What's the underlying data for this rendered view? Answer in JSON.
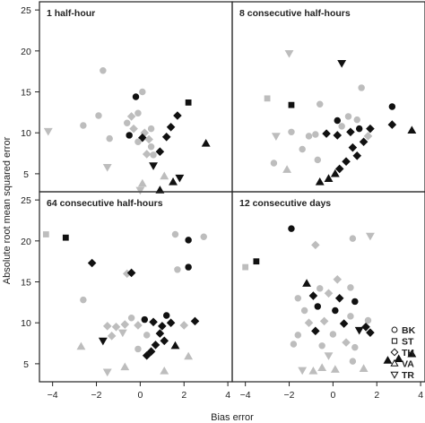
{
  "figure": {
    "xlabel": "Bias error",
    "ylabel": "Absolute root mean squared error"
  },
  "legend": {
    "items": [
      {
        "code": "BK",
        "shape": "circle"
      },
      {
        "code": "ST",
        "shape": "square"
      },
      {
        "code": "TH",
        "shape": "diamond"
      },
      {
        "code": "VA",
        "shape": "triangle-up"
      },
      {
        "code": "TR",
        "shape": "triangle-down"
      }
    ]
  },
  "colors": {
    "black": "#111111",
    "gray": "#bdbdbd",
    "frame": "#222222"
  },
  "chart_data": [
    {
      "type": "scatter",
      "title": "1 half-hour",
      "xlim": [
        -4.6,
        4.2
      ],
      "ylim": [
        2.8,
        26
      ],
      "xticks": [
        -4,
        -2,
        0,
        2,
        4
      ],
      "yticks": [
        5,
        10,
        15,
        20,
        25
      ],
      "points": [
        {
          "x": -1.7,
          "y": 17.6,
          "shape": "circle",
          "fill": "gray"
        },
        {
          "x": -2.6,
          "y": 10.9,
          "shape": "circle",
          "fill": "gray"
        },
        {
          "x": -1.9,
          "y": 12.1,
          "shape": "circle",
          "fill": "gray"
        },
        {
          "x": -1.4,
          "y": 9.3,
          "shape": "circle",
          "fill": "gray"
        },
        {
          "x": -4.2,
          "y": 10.2,
          "shape": "triangle-down",
          "fill": "gray"
        },
        {
          "x": -1.5,
          "y": 5.8,
          "shape": "triangle-down",
          "fill": "gray"
        },
        {
          "x": -0.2,
          "y": 14.4,
          "shape": "circle",
          "fill": "black"
        },
        {
          "x": 0.1,
          "y": 15.0,
          "shape": "circle",
          "fill": "gray"
        },
        {
          "x": -0.4,
          "y": 12.0,
          "shape": "diamond",
          "fill": "gray"
        },
        {
          "x": -0.6,
          "y": 11.2,
          "shape": "circle",
          "fill": "gray"
        },
        {
          "x": -0.1,
          "y": 12.4,
          "shape": "circle",
          "fill": "gray"
        },
        {
          "x": -0.3,
          "y": 10.5,
          "shape": "diamond",
          "fill": "gray"
        },
        {
          "x": 0.2,
          "y": 10.0,
          "shape": "diamond",
          "fill": "gray"
        },
        {
          "x": 0.5,
          "y": 10.5,
          "shape": "circle",
          "fill": "gray"
        },
        {
          "x": -0.5,
          "y": 9.7,
          "shape": "circle",
          "fill": "black"
        },
        {
          "x": 0.1,
          "y": 9.4,
          "shape": "diamond",
          "fill": "black"
        },
        {
          "x": 0.4,
          "y": 9.2,
          "shape": "diamond",
          "fill": "gray"
        },
        {
          "x": -0.1,
          "y": 8.9,
          "shape": "circle",
          "fill": "gray"
        },
        {
          "x": 0.5,
          "y": 8.3,
          "shape": "circle",
          "fill": "gray"
        },
        {
          "x": 0.3,
          "y": 7.4,
          "shape": "diamond",
          "fill": "gray"
        },
        {
          "x": 0.6,
          "y": 7.3,
          "shape": "circle",
          "fill": "gray"
        },
        {
          "x": 0.9,
          "y": 7.7,
          "shape": "diamond",
          "fill": "black"
        },
        {
          "x": 1.2,
          "y": 9.5,
          "shape": "diamond",
          "fill": "black"
        },
        {
          "x": 1.7,
          "y": 12.1,
          "shape": "diamond",
          "fill": "black"
        },
        {
          "x": 1.4,
          "y": 10.7,
          "shape": "diamond",
          "fill": "black"
        },
        {
          "x": 2.2,
          "y": 13.7,
          "shape": "square",
          "fill": "black"
        },
        {
          "x": 3.0,
          "y": 8.7,
          "shape": "triangle-up",
          "fill": "black"
        },
        {
          "x": 0.6,
          "y": 6.0,
          "shape": "triangle-down",
          "fill": "black"
        },
        {
          "x": 1.1,
          "y": 4.7,
          "shape": "triangle-up",
          "fill": "gray"
        },
        {
          "x": 1.8,
          "y": 4.5,
          "shape": "triangle-down",
          "fill": "black"
        },
        {
          "x": 1.5,
          "y": 4.0,
          "shape": "triangle-up",
          "fill": "black"
        },
        {
          "x": 0.1,
          "y": 3.8,
          "shape": "triangle-up",
          "fill": "gray"
        },
        {
          "x": 0.9,
          "y": 3.0,
          "shape": "triangle-up",
          "fill": "black"
        },
        {
          "x": 0.0,
          "y": 3.0,
          "shape": "triangle-down",
          "fill": "gray"
        }
      ]
    },
    {
      "type": "scatter",
      "title": "8 consecutive half-hours",
      "xlim": [
        -4.6,
        4.2
      ],
      "ylim": [
        2.8,
        26
      ],
      "xticks": [
        -4,
        -2,
        0,
        2,
        4
      ],
      "yticks": [
        5,
        10,
        15,
        20,
        25
      ],
      "points": [
        {
          "x": -2.0,
          "y": 19.7,
          "shape": "triangle-down",
          "fill": "gray"
        },
        {
          "x": 0.4,
          "y": 18.5,
          "shape": "triangle-down",
          "fill": "black"
        },
        {
          "x": -3.0,
          "y": 14.2,
          "shape": "square",
          "fill": "gray"
        },
        {
          "x": -1.9,
          "y": 13.4,
          "shape": "square",
          "fill": "black"
        },
        {
          "x": -0.6,
          "y": 13.5,
          "shape": "circle",
          "fill": "gray"
        },
        {
          "x": 1.3,
          "y": 15.5,
          "shape": "circle",
          "fill": "gray"
        },
        {
          "x": 2.7,
          "y": 13.2,
          "shape": "circle",
          "fill": "black"
        },
        {
          "x": 0.2,
          "y": 11.5,
          "shape": "circle",
          "fill": "black"
        },
        {
          "x": 0.7,
          "y": 12.0,
          "shape": "circle",
          "fill": "gray"
        },
        {
          "x": 1.1,
          "y": 11.6,
          "shape": "circle",
          "fill": "gray"
        },
        {
          "x": 0.4,
          "y": 10.8,
          "shape": "circle",
          "fill": "gray"
        },
        {
          "x": 2.7,
          "y": 11.0,
          "shape": "diamond",
          "fill": "black"
        },
        {
          "x": 3.6,
          "y": 10.3,
          "shape": "triangle-up",
          "fill": "black"
        },
        {
          "x": 1.7,
          "y": 10.5,
          "shape": "diamond",
          "fill": "black"
        },
        {
          "x": -1.9,
          "y": 10.1,
          "shape": "circle",
          "fill": "gray"
        },
        {
          "x": -2.6,
          "y": 9.6,
          "shape": "triangle-down",
          "fill": "gray"
        },
        {
          "x": -1.1,
          "y": 9.6,
          "shape": "circle",
          "fill": "gray"
        },
        {
          "x": -0.8,
          "y": 9.8,
          "shape": "circle",
          "fill": "gray"
        },
        {
          "x": -0.3,
          "y": 9.9,
          "shape": "diamond",
          "fill": "black"
        },
        {
          "x": 0.2,
          "y": 9.7,
          "shape": "diamond",
          "fill": "black"
        },
        {
          "x": 0.8,
          "y": 10.1,
          "shape": "diamond",
          "fill": "black"
        },
        {
          "x": 1.2,
          "y": 10.5,
          "shape": "circle",
          "fill": "black"
        },
        {
          "x": 1.6,
          "y": 9.6,
          "shape": "diamond",
          "fill": "gray"
        },
        {
          "x": 1.4,
          "y": 8.9,
          "shape": "diamond",
          "fill": "black"
        },
        {
          "x": 0.9,
          "y": 8.2,
          "shape": "diamond",
          "fill": "black"
        },
        {
          "x": 1.1,
          "y": 7.2,
          "shape": "diamond",
          "fill": "black"
        },
        {
          "x": -1.4,
          "y": 8.0,
          "shape": "circle",
          "fill": "gray"
        },
        {
          "x": -0.7,
          "y": 6.7,
          "shape": "circle",
          "fill": "gray"
        },
        {
          "x": -2.7,
          "y": 6.3,
          "shape": "circle",
          "fill": "gray"
        },
        {
          "x": -2.1,
          "y": 5.5,
          "shape": "triangle-up",
          "fill": "gray"
        },
        {
          "x": 0.6,
          "y": 6.5,
          "shape": "diamond",
          "fill": "black"
        },
        {
          "x": 0.3,
          "y": 5.6,
          "shape": "diamond",
          "fill": "black"
        },
        {
          "x": 0.1,
          "y": 5.0,
          "shape": "triangle-up",
          "fill": "black"
        },
        {
          "x": -0.2,
          "y": 4.4,
          "shape": "triangle-up",
          "fill": "black"
        },
        {
          "x": -0.6,
          "y": 4.0,
          "shape": "triangle-up",
          "fill": "black"
        }
      ]
    },
    {
      "type": "scatter",
      "title": "64 consecutive half-hours",
      "xlim": [
        -4.6,
        4.2
      ],
      "ylim": [
        2.8,
        26
      ],
      "xticks": [
        -4,
        -2,
        0,
        2,
        4
      ],
      "yticks": [
        5,
        10,
        15,
        20,
        25
      ],
      "points": [
        {
          "x": -4.3,
          "y": 20.8,
          "shape": "square",
          "fill": "gray"
        },
        {
          "x": -3.4,
          "y": 20.4,
          "shape": "square",
          "fill": "black"
        },
        {
          "x": -2.2,
          "y": 17.3,
          "shape": "diamond",
          "fill": "black"
        },
        {
          "x": -0.6,
          "y": 16.0,
          "shape": "diamond",
          "fill": "gray"
        },
        {
          "x": -0.4,
          "y": 16.1,
          "shape": "diamond",
          "fill": "black"
        },
        {
          "x": 1.6,
          "y": 20.8,
          "shape": "circle",
          "fill": "gray"
        },
        {
          "x": 2.2,
          "y": 20.1,
          "shape": "circle",
          "fill": "black"
        },
        {
          "x": 2.9,
          "y": 20.5,
          "shape": "circle",
          "fill": "gray"
        },
        {
          "x": 1.7,
          "y": 16.5,
          "shape": "circle",
          "fill": "gray"
        },
        {
          "x": 2.2,
          "y": 16.8,
          "shape": "circle",
          "fill": "black"
        },
        {
          "x": -2.6,
          "y": 12.8,
          "shape": "circle",
          "fill": "gray"
        },
        {
          "x": -0.4,
          "y": 10.6,
          "shape": "circle",
          "fill": "gray"
        },
        {
          "x": 0.2,
          "y": 10.4,
          "shape": "circle",
          "fill": "black"
        },
        {
          "x": 1.2,
          "y": 10.9,
          "shape": "circle",
          "fill": "black"
        },
        {
          "x": -1.5,
          "y": 9.6,
          "shape": "diamond",
          "fill": "gray"
        },
        {
          "x": -1.1,
          "y": 9.5,
          "shape": "diamond",
          "fill": "gray"
        },
        {
          "x": -0.7,
          "y": 9.8,
          "shape": "diamond",
          "fill": "gray"
        },
        {
          "x": -0.1,
          "y": 9.7,
          "shape": "diamond",
          "fill": "gray"
        },
        {
          "x": 0.6,
          "y": 10.1,
          "shape": "diamond",
          "fill": "black"
        },
        {
          "x": 1.0,
          "y": 9.6,
          "shape": "diamond",
          "fill": "black"
        },
        {
          "x": 1.4,
          "y": 10.0,
          "shape": "diamond",
          "fill": "black"
        },
        {
          "x": 2.5,
          "y": 10.2,
          "shape": "diamond",
          "fill": "black"
        },
        {
          "x": 2.0,
          "y": 9.7,
          "shape": "diamond",
          "fill": "gray"
        },
        {
          "x": -1.3,
          "y": 8.4,
          "shape": "diamond",
          "fill": "gray"
        },
        {
          "x": -0.8,
          "y": 8.8,
          "shape": "triangle-down",
          "fill": "gray"
        },
        {
          "x": 0.3,
          "y": 8.5,
          "shape": "circle",
          "fill": "gray"
        },
        {
          "x": 0.9,
          "y": 8.7,
          "shape": "diamond",
          "fill": "black"
        },
        {
          "x": -1.7,
          "y": 7.8,
          "shape": "triangle-down",
          "fill": "black"
        },
        {
          "x": 1.1,
          "y": 7.8,
          "shape": "diamond",
          "fill": "black"
        },
        {
          "x": 0.7,
          "y": 7.3,
          "shape": "diamond",
          "fill": "black"
        },
        {
          "x": -2.7,
          "y": 7.1,
          "shape": "triangle-up",
          "fill": "gray"
        },
        {
          "x": -0.1,
          "y": 6.8,
          "shape": "circle",
          "fill": "gray"
        },
        {
          "x": 0.5,
          "y": 6.5,
          "shape": "diamond",
          "fill": "black"
        },
        {
          "x": 0.3,
          "y": 6.0,
          "shape": "diamond",
          "fill": "black"
        },
        {
          "x": 1.6,
          "y": 7.2,
          "shape": "triangle-up",
          "fill": "black"
        },
        {
          "x": 2.2,
          "y": 5.9,
          "shape": "triangle-up",
          "fill": "gray"
        },
        {
          "x": -0.7,
          "y": 4.6,
          "shape": "triangle-up",
          "fill": "gray"
        },
        {
          "x": -1.5,
          "y": 4.0,
          "shape": "triangle-down",
          "fill": "gray"
        },
        {
          "x": 1.1,
          "y": 4.1,
          "shape": "triangle-up",
          "fill": "gray"
        }
      ]
    },
    {
      "type": "scatter",
      "title": "12 consecutive days",
      "xlim": [
        -4.6,
        4.2
      ],
      "ylim": [
        2.8,
        26
      ],
      "xticks": [
        -4,
        -2,
        0,
        2,
        4
      ],
      "yticks": [
        5,
        10,
        15,
        20,
        25
      ],
      "points": [
        {
          "x": -1.9,
          "y": 21.5,
          "shape": "circle",
          "fill": "black"
        },
        {
          "x": 0.9,
          "y": 20.3,
          "shape": "circle",
          "fill": "gray"
        },
        {
          "x": 1.7,
          "y": 20.6,
          "shape": "triangle-down",
          "fill": "gray"
        },
        {
          "x": -0.8,
          "y": 19.5,
          "shape": "diamond",
          "fill": "gray"
        },
        {
          "x": -4.0,
          "y": 16.8,
          "shape": "square",
          "fill": "gray"
        },
        {
          "x": -3.5,
          "y": 17.5,
          "shape": "square",
          "fill": "black"
        },
        {
          "x": -1.2,
          "y": 14.8,
          "shape": "triangle-up",
          "fill": "black"
        },
        {
          "x": -0.6,
          "y": 14.2,
          "shape": "circle",
          "fill": "gray"
        },
        {
          "x": 0.2,
          "y": 15.3,
          "shape": "diamond",
          "fill": "gray"
        },
        {
          "x": 0.8,
          "y": 14.3,
          "shape": "circle",
          "fill": "gray"
        },
        {
          "x": -1.6,
          "y": 13.0,
          "shape": "circle",
          "fill": "gray"
        },
        {
          "x": -0.9,
          "y": 13.3,
          "shape": "diamond",
          "fill": "black"
        },
        {
          "x": -0.2,
          "y": 13.6,
          "shape": "diamond",
          "fill": "gray"
        },
        {
          "x": 0.3,
          "y": 13.0,
          "shape": "diamond",
          "fill": "black"
        },
        {
          "x": 1.0,
          "y": 12.6,
          "shape": "circle",
          "fill": "black"
        },
        {
          "x": -0.7,
          "y": 12.0,
          "shape": "circle",
          "fill": "black"
        },
        {
          "x": -1.3,
          "y": 11.5,
          "shape": "circle",
          "fill": "gray"
        },
        {
          "x": 0.1,
          "y": 11.5,
          "shape": "circle",
          "fill": "black"
        },
        {
          "x": 1.6,
          "y": 10.3,
          "shape": "circle",
          "fill": "gray"
        },
        {
          "x": 0.8,
          "y": 10.8,
          "shape": "circle",
          "fill": "gray"
        },
        {
          "x": -1.1,
          "y": 10.0,
          "shape": "diamond",
          "fill": "gray"
        },
        {
          "x": -0.4,
          "y": 10.2,
          "shape": "diamond",
          "fill": "gray"
        },
        {
          "x": 0.5,
          "y": 9.9,
          "shape": "diamond",
          "fill": "black"
        },
        {
          "x": -1.6,
          "y": 8.5,
          "shape": "circle",
          "fill": "gray"
        },
        {
          "x": -0.8,
          "y": 9.0,
          "shape": "diamond",
          "fill": "black"
        },
        {
          "x": 0.0,
          "y": 8.6,
          "shape": "circle",
          "fill": "gray"
        },
        {
          "x": 1.2,
          "y": 9.1,
          "shape": "triangle-down",
          "fill": "black"
        },
        {
          "x": 1.7,
          "y": 8.8,
          "shape": "diamond",
          "fill": "black"
        },
        {
          "x": 1.5,
          "y": 9.5,
          "shape": "diamond",
          "fill": "black"
        },
        {
          "x": -1.8,
          "y": 7.4,
          "shape": "circle",
          "fill": "gray"
        },
        {
          "x": -0.5,
          "y": 7.2,
          "shape": "circle",
          "fill": "gray"
        },
        {
          "x": 0.6,
          "y": 7.6,
          "shape": "diamond",
          "fill": "gray"
        },
        {
          "x": 1.0,
          "y": 7.0,
          "shape": "circle",
          "fill": "gray"
        },
        {
          "x": -0.2,
          "y": 6.0,
          "shape": "triangle-down",
          "fill": "gray"
        },
        {
          "x": 0.9,
          "y": 5.3,
          "shape": "circle",
          "fill": "gray"
        },
        {
          "x": 2.5,
          "y": 5.4,
          "shape": "triangle-up",
          "fill": "black"
        },
        {
          "x": 3.0,
          "y": 5.6,
          "shape": "triangle-up",
          "fill": "black"
        },
        {
          "x": 3.6,
          "y": 6.2,
          "shape": "triangle-up",
          "fill": "black"
        },
        {
          "x": -1.4,
          "y": 4.2,
          "shape": "triangle-down",
          "fill": "gray"
        },
        {
          "x": -0.9,
          "y": 4.1,
          "shape": "triangle-up",
          "fill": "gray"
        },
        {
          "x": -0.5,
          "y": 4.5,
          "shape": "triangle-up",
          "fill": "gray"
        },
        {
          "x": 0.1,
          "y": 4.3,
          "shape": "triangle-up",
          "fill": "gray"
        },
        {
          "x": 1.4,
          "y": 4.4,
          "shape": "triangle-up",
          "fill": "gray"
        }
      ]
    }
  ]
}
